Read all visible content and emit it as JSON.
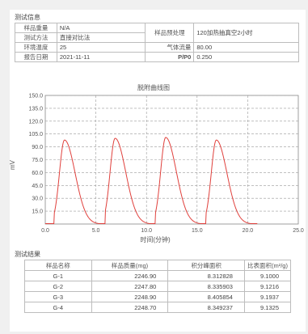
{
  "test_info": {
    "section_title": "测试信息",
    "sample_weight_label": "样品重量",
    "sample_weight_value": "N/A",
    "method_label": "测试方法",
    "method_value": "直接对比法",
    "ambient_temp_label": "环境温度",
    "ambient_temp_value": "25",
    "report_date_label": "报告日期",
    "report_date_value": "2021-11-11",
    "pretreatment_label": "样品预处理",
    "pretreatment_value": "120加热抽真空2小时",
    "gas_flow_label": "气体流量",
    "gas_flow_value": "80.00",
    "pp0_label": "P/P0",
    "pp0_value": "0.250"
  },
  "chart_data": {
    "type": "line",
    "title": "脱附曲线图",
    "xlabel": "时间(分钟)",
    "ylabel": "mV",
    "xlim": [
      0,
      25
    ],
    "ylim": [
      0,
      150
    ],
    "x_ticks": [
      "0.0",
      "5.0",
      "10.0",
      "15.0",
      "20.0",
      "25.0"
    ],
    "y_ticks": [
      "15.0",
      "30.0",
      "45.0",
      "60.0",
      "75.0",
      "90.0",
      "105.0",
      "120.0",
      "135.0",
      "150.0"
    ],
    "grid": true,
    "line_color": "#e0403c",
    "series": [
      {
        "peaks": [
          {
            "x_peak": 1.9,
            "y_peak": 98
          },
          {
            "x_peak": 6.9,
            "y_peak": 100
          },
          {
            "x_peak": 11.9,
            "y_peak": 101
          },
          {
            "x_peak": 16.9,
            "y_peak": 98
          }
        ],
        "peak_starts": [
          0.9,
          5.9,
          10.9,
          15.9
        ]
      }
    ]
  },
  "results": {
    "section_title": "测试结果",
    "columns": [
      "样品名称",
      "样品质量(mg)",
      "积分峰面积",
      "比表面积(m²/g)"
    ],
    "rows": [
      [
        "G-1",
        "2246.90",
        "8.312828",
        "9.1000"
      ],
      [
        "G-2",
        "2247.80",
        "8.335903",
        "9.1216"
      ],
      [
        "G-3",
        "2248.90",
        "8.405854",
        "9.1937"
      ],
      [
        "G-4",
        "2248.70",
        "8.349237",
        "9.1325"
      ]
    ]
  }
}
